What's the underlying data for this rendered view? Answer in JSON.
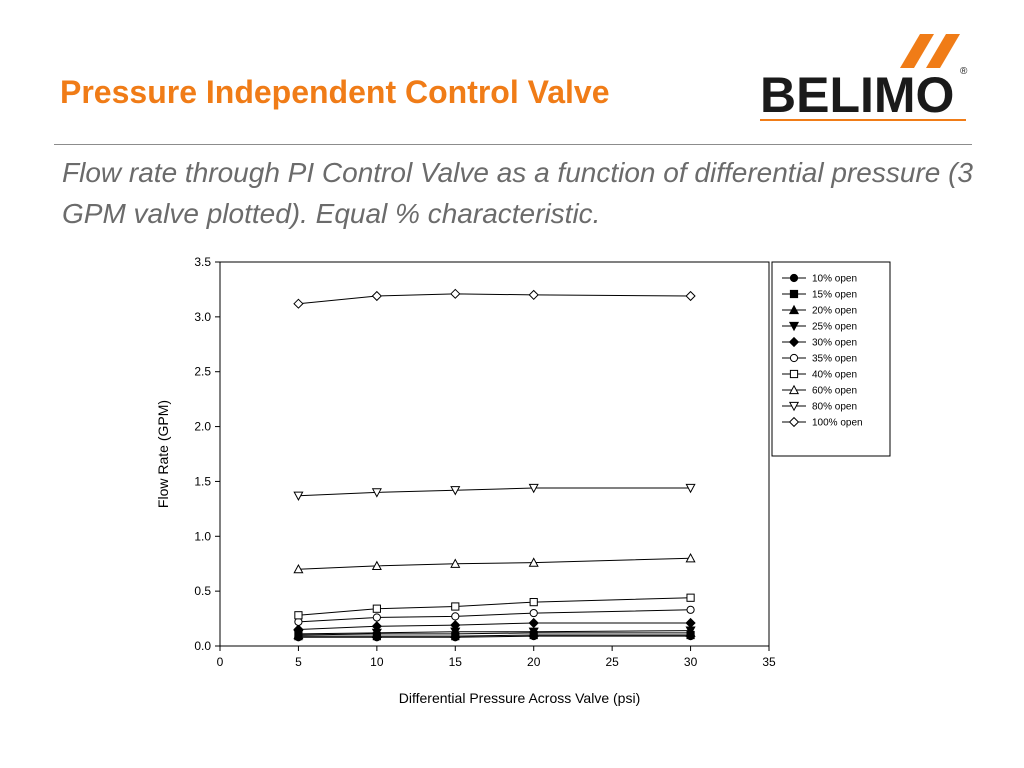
{
  "slide": {
    "title": "Pressure Independent Control Valve",
    "subtitle": "Flow rate through PI Control Valve as a function of differential pressure (3 GPM valve plotted). Equal % characteristic.",
    "logo_text": "BELIMO",
    "logo_mark": "®",
    "accent_color": "#f07c17"
  },
  "chart_data": {
    "type": "line",
    "title": "",
    "xlabel": "Differential Pressure Across Valve (psi)",
    "ylabel": "Flow Rate (GPM)",
    "xlim": [
      0,
      35
    ],
    "ylim": [
      0,
      3.5
    ],
    "xticks": [
      0,
      5,
      10,
      15,
      20,
      25,
      30,
      35
    ],
    "yticks": [
      0.0,
      0.5,
      1.0,
      1.5,
      2.0,
      2.5,
      3.0,
      3.5
    ],
    "grid": false,
    "legend_position": "right",
    "x": [
      5,
      10,
      15,
      20,
      30
    ],
    "series": [
      {
        "name": "10% open",
        "marker": "circle-filled",
        "values": [
          0.08,
          0.08,
          0.08,
          0.09,
          0.09
        ]
      },
      {
        "name": "15% open",
        "marker": "square-filled",
        "values": [
          0.09,
          0.09,
          0.09,
          0.1,
          0.1
        ]
      },
      {
        "name": "20% open",
        "marker": "triangle-up-filled",
        "values": [
          0.1,
          0.11,
          0.11,
          0.12,
          0.12
        ]
      },
      {
        "name": "25% open",
        "marker": "triangle-down-filled",
        "values": [
          0.11,
          0.12,
          0.13,
          0.13,
          0.14
        ]
      },
      {
        "name": "30% open",
        "marker": "diamond-filled",
        "values": [
          0.15,
          0.18,
          0.19,
          0.21,
          0.21
        ]
      },
      {
        "name": "35% open",
        "marker": "circle-open",
        "values": [
          0.22,
          0.26,
          0.27,
          0.3,
          0.33
        ]
      },
      {
        "name": "40% open",
        "marker": "square-open",
        "values": [
          0.28,
          0.34,
          0.36,
          0.4,
          0.44
        ]
      },
      {
        "name": "60% open",
        "marker": "triangle-up-open",
        "values": [
          0.7,
          0.73,
          0.75,
          0.76,
          0.8
        ]
      },
      {
        "name": "80% open",
        "marker": "triangle-down-open",
        "values": [
          1.37,
          1.4,
          1.42,
          1.44,
          1.44
        ]
      },
      {
        "name": "100% open",
        "marker": "diamond-open",
        "values": [
          3.12,
          3.19,
          3.21,
          3.2,
          3.19
        ]
      }
    ]
  }
}
